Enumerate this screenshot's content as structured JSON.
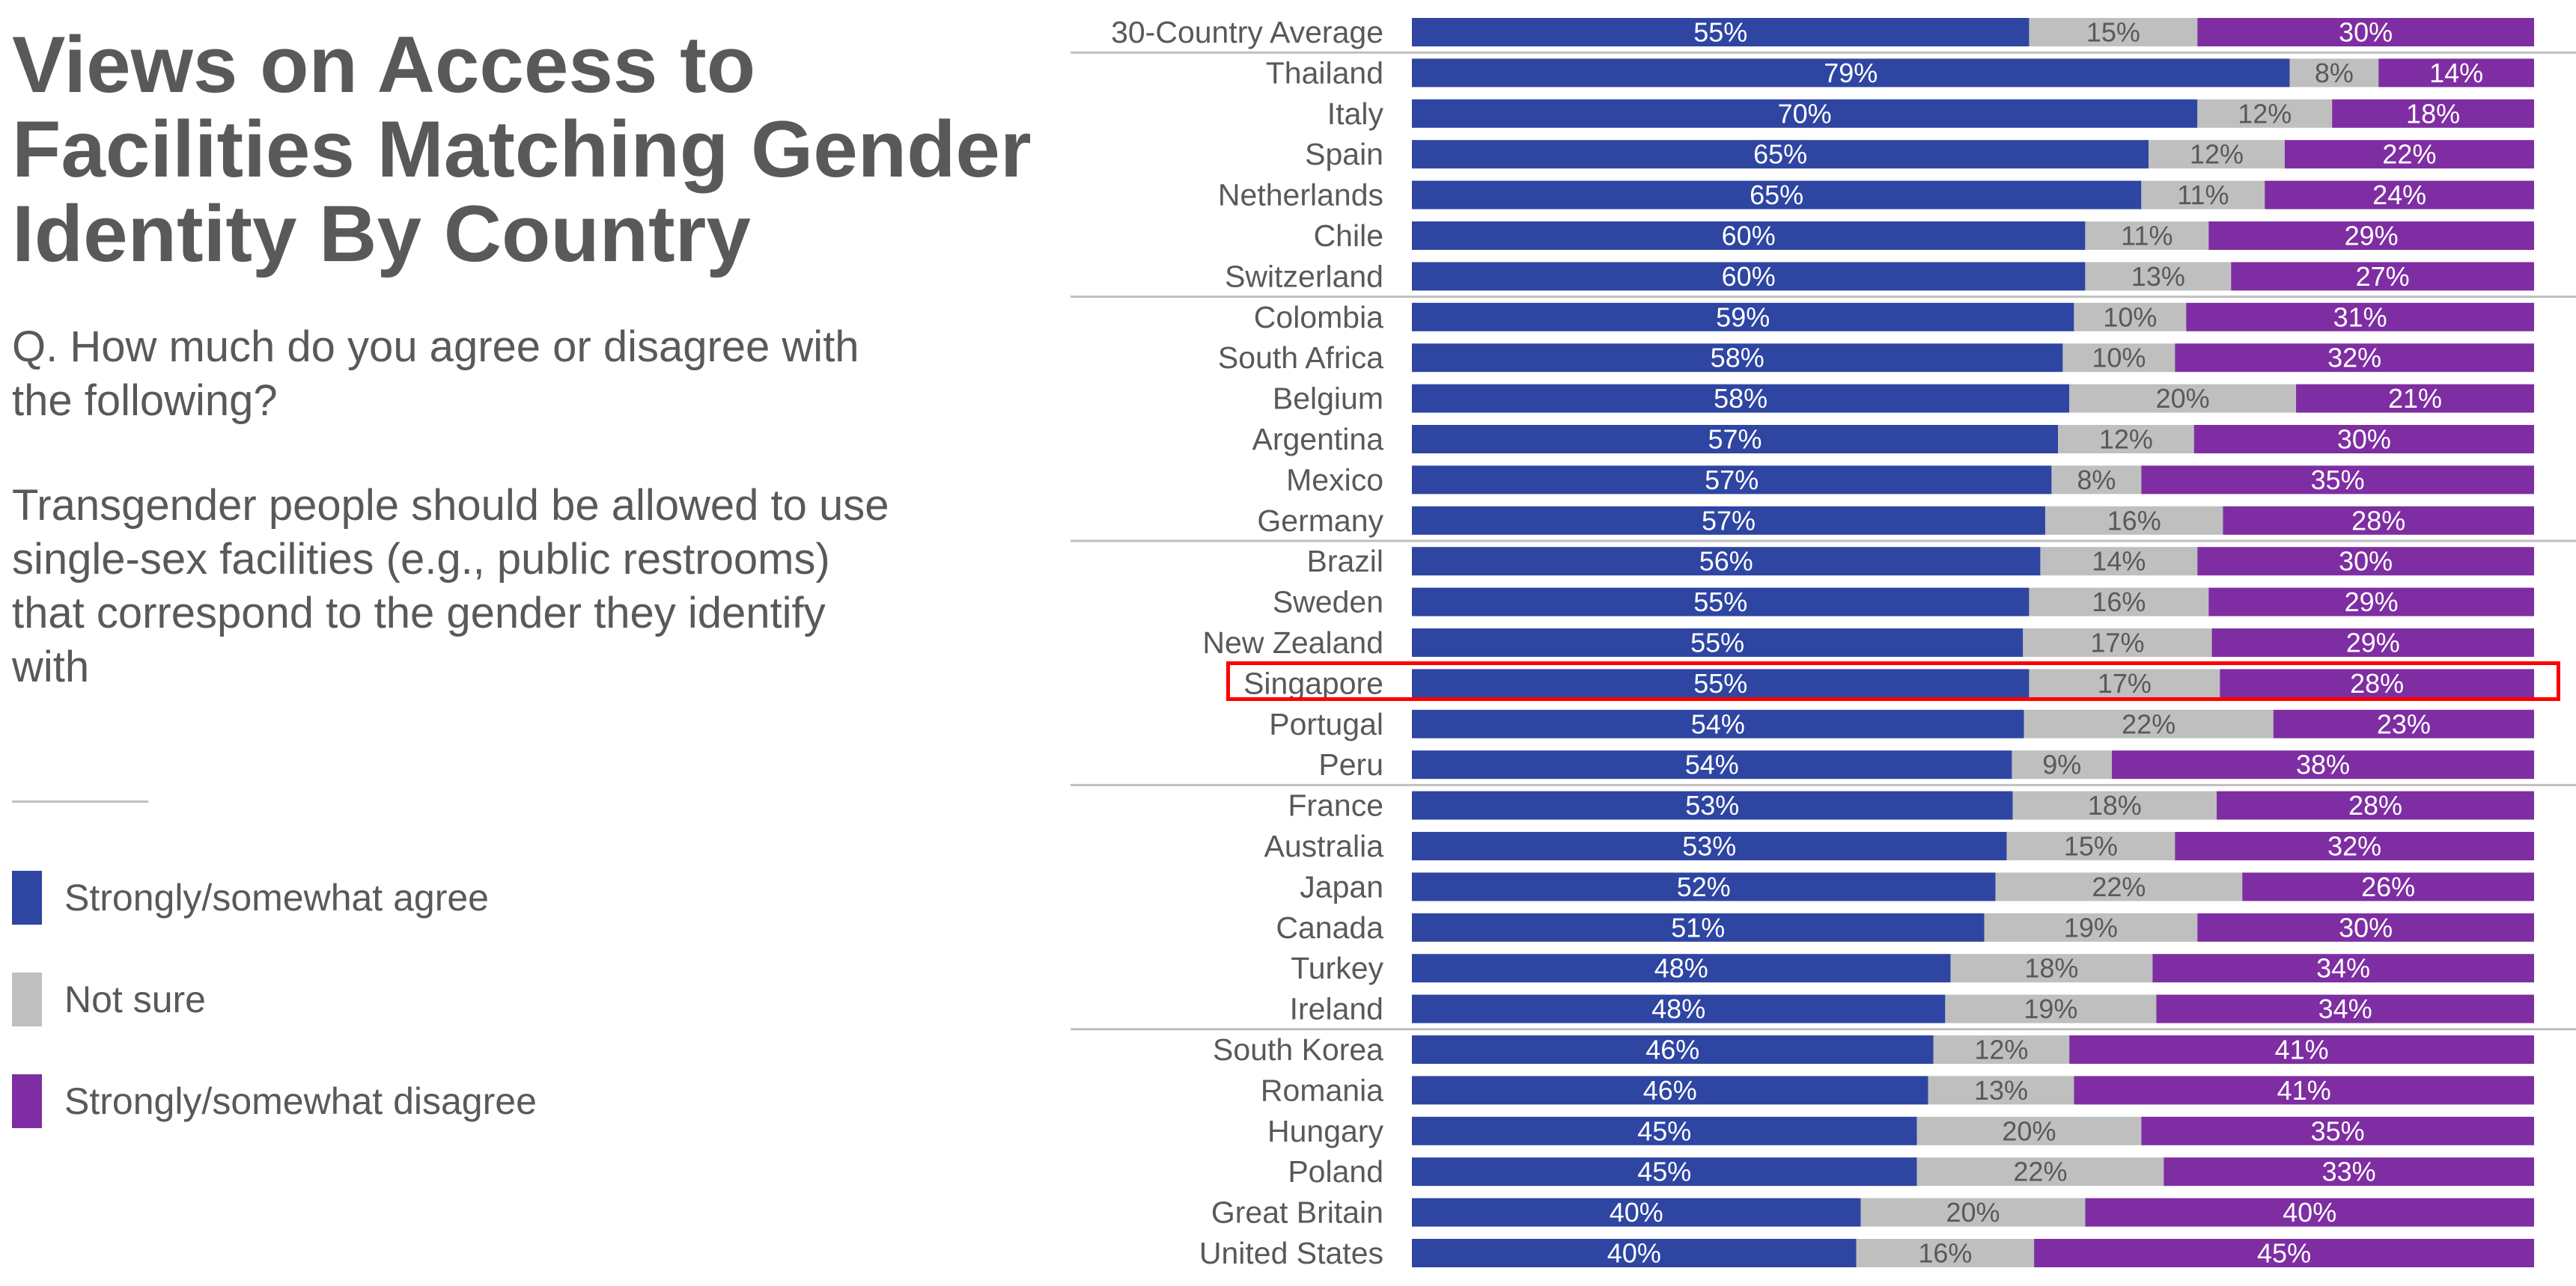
{
  "left": {
    "title": "Views on Access to Facilities Matching Gender Identity By Country",
    "subtitle": "Q. How much do you agree or disagree with the following?",
    "statement": "Transgender people should be allowed to use single-sex facilities (e.g., public restrooms) that correspond to the gender they identify with"
  },
  "chart_data": {
    "type": "bar",
    "orientation": "horizontal",
    "stacked": true,
    "title": "Views on Access to Facilities Matching Gender Identity By Country",
    "xlabel": "",
    "ylabel": "",
    "xlim": [
      0,
      100
    ],
    "grid": false,
    "legend_position": "left",
    "highlighted_category": "Singapore",
    "categories": [
      "30-Country Average",
      "Thailand",
      "Italy",
      "Spain",
      "Netherlands",
      "Chile",
      "Switzerland",
      "Colombia",
      "South Africa",
      "Belgium",
      "Argentina",
      "Mexico",
      "Germany",
      "Brazil",
      "Sweden",
      "New Zealand",
      "Singapore",
      "Portugal",
      "Peru",
      "France",
      "Australia",
      "Japan",
      "Canada",
      "Turkey",
      "Ireland",
      "South Korea",
      "Romania",
      "Hungary",
      "Poland",
      "Great Britain",
      "United States"
    ],
    "group_breaks_after": [
      "30-Country Average",
      "Switzerland",
      "Germany",
      "Peru",
      "Ireland"
    ],
    "series": [
      {
        "name": "Strongly/somewhat agree",
        "color": "#2E45A2",
        "values": [
          55,
          79,
          70,
          65,
          65,
          60,
          60,
          59,
          58,
          58,
          57,
          57,
          57,
          56,
          55,
          55,
          55,
          54,
          54,
          53,
          53,
          52,
          51,
          48,
          48,
          46,
          46,
          45,
          45,
          40,
          40
        ]
      },
      {
        "name": "Not sure",
        "color": "#BFBFBF",
        "values": [
          15,
          8,
          12,
          12,
          11,
          11,
          13,
          10,
          10,
          20,
          12,
          8,
          16,
          14,
          16,
          17,
          17,
          22,
          9,
          18,
          15,
          22,
          19,
          18,
          19,
          12,
          13,
          20,
          22,
          20,
          16
        ]
      },
      {
        "name": "Strongly/somewhat disagree",
        "color": "#7E2EA2",
        "values": [
          30,
          14,
          18,
          22,
          24,
          29,
          27,
          31,
          32,
          21,
          30,
          35,
          28,
          30,
          29,
          29,
          28,
          23,
          38,
          28,
          32,
          26,
          30,
          34,
          34,
          41,
          41,
          35,
          33,
          40,
          45
        ]
      }
    ],
    "label_format": "{v}%"
  }
}
